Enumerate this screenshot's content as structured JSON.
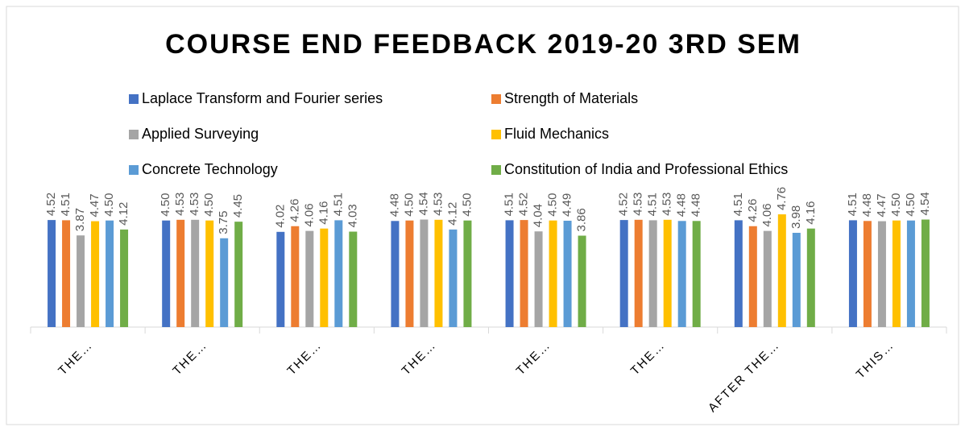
{
  "chart_data": {
    "type": "bar",
    "title": "COURSE END FEEDBACK 2019-20 3RD SEM",
    "categories": [
      "THE…",
      "THE…",
      "THE…",
      "THE…",
      "THE…",
      "THE…",
      "AFTER THE…",
      "THIS…"
    ],
    "ylim": [
      0,
      5
    ],
    "series": [
      {
        "name": "Laplace Transform and Fourier series",
        "color": "#4472c4",
        "values": [
          4.52,
          4.5,
          4.02,
          4.48,
          4.51,
          4.52,
          4.51,
          4.51
        ],
        "value_labels": [
          "4.52",
          "4.50",
          "4.02",
          "4.48",
          "4.51",
          "4.52",
          "4.51",
          "4.51"
        ]
      },
      {
        "name": "Strength of Materials",
        "color": "#ed7d31",
        "values": [
          4.51,
          4.53,
          4.26,
          4.5,
          4.52,
          4.53,
          4.26,
          4.48
        ],
        "value_labels": [
          "4.51",
          "4.53",
          "4.26",
          "4.50",
          "4.52",
          "4.53",
          "4.26",
          "4.48"
        ]
      },
      {
        "name": "Applied Surveying",
        "color": "#a5a5a5",
        "values": [
          3.87,
          4.53,
          4.06,
          4.54,
          4.04,
          4.51,
          4.06,
          4.47
        ],
        "value_labels": [
          "3.87",
          "4.53",
          "4.06",
          "4.54",
          "4.04",
          "4.51",
          "4.06",
          "4.47"
        ]
      },
      {
        "name": "Fluid Mechanics",
        "color": "#ffc000",
        "values": [
          4.47,
          4.5,
          4.16,
          4.53,
          4.5,
          4.53,
          4.76,
          4.5
        ],
        "value_labels": [
          "4.47",
          "4.50",
          "4.16",
          "4.53",
          "4.50",
          "4.53",
          "4.76",
          "4.50"
        ]
      },
      {
        "name": "Concrete Technology",
        "color": "#5b9bd5",
        "values": [
          4.5,
          3.75,
          4.51,
          4.12,
          4.49,
          4.48,
          3.98,
          4.5
        ],
        "value_labels": [
          "4.50",
          "3.75",
          "4.51",
          "4.12",
          "4.49",
          "4.48",
          "3.98",
          "4.50"
        ]
      },
      {
        "name": "Constitution of India and Professional Ethics",
        "color": "#70ad47",
        "values": [
          4.12,
          4.45,
          4.03,
          4.5,
          3.86,
          4.48,
          4.16,
          4.54
        ],
        "value_labels": [
          "4.12",
          "4.45",
          "4.03",
          "4.50",
          "3.86",
          "4.48",
          "4.16",
          "4.54"
        ]
      }
    ]
  }
}
